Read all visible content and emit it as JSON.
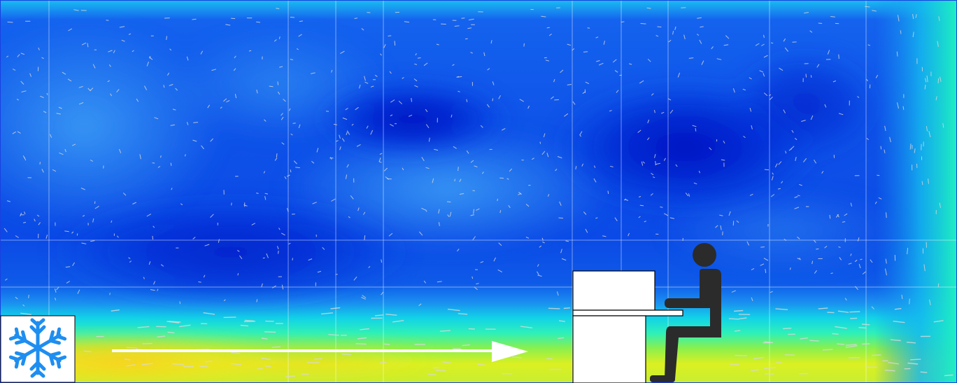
{
  "figure": {
    "kind": "cfd-velocity-contour",
    "colormap": [
      "#0018c8",
      "#0a5af0",
      "#1e90ff",
      "#00e5f0",
      "#00f0a0",
      "#7df04a",
      "#d8f010",
      "#ffd000"
    ],
    "arrow_color": "#d8d8d8",
    "elements": {
      "cooling_unit_icon": "snowflake-icon",
      "flow_direction": "arrow-right-icon",
      "furniture": "desk",
      "occupant": "seated-person-icon"
    },
    "colors": {
      "snowflake": "#1e8ef0",
      "person": "#2b2b2b",
      "desk": "#ffffff",
      "outline": "#000000",
      "grid": "#ffffff"
    }
  }
}
